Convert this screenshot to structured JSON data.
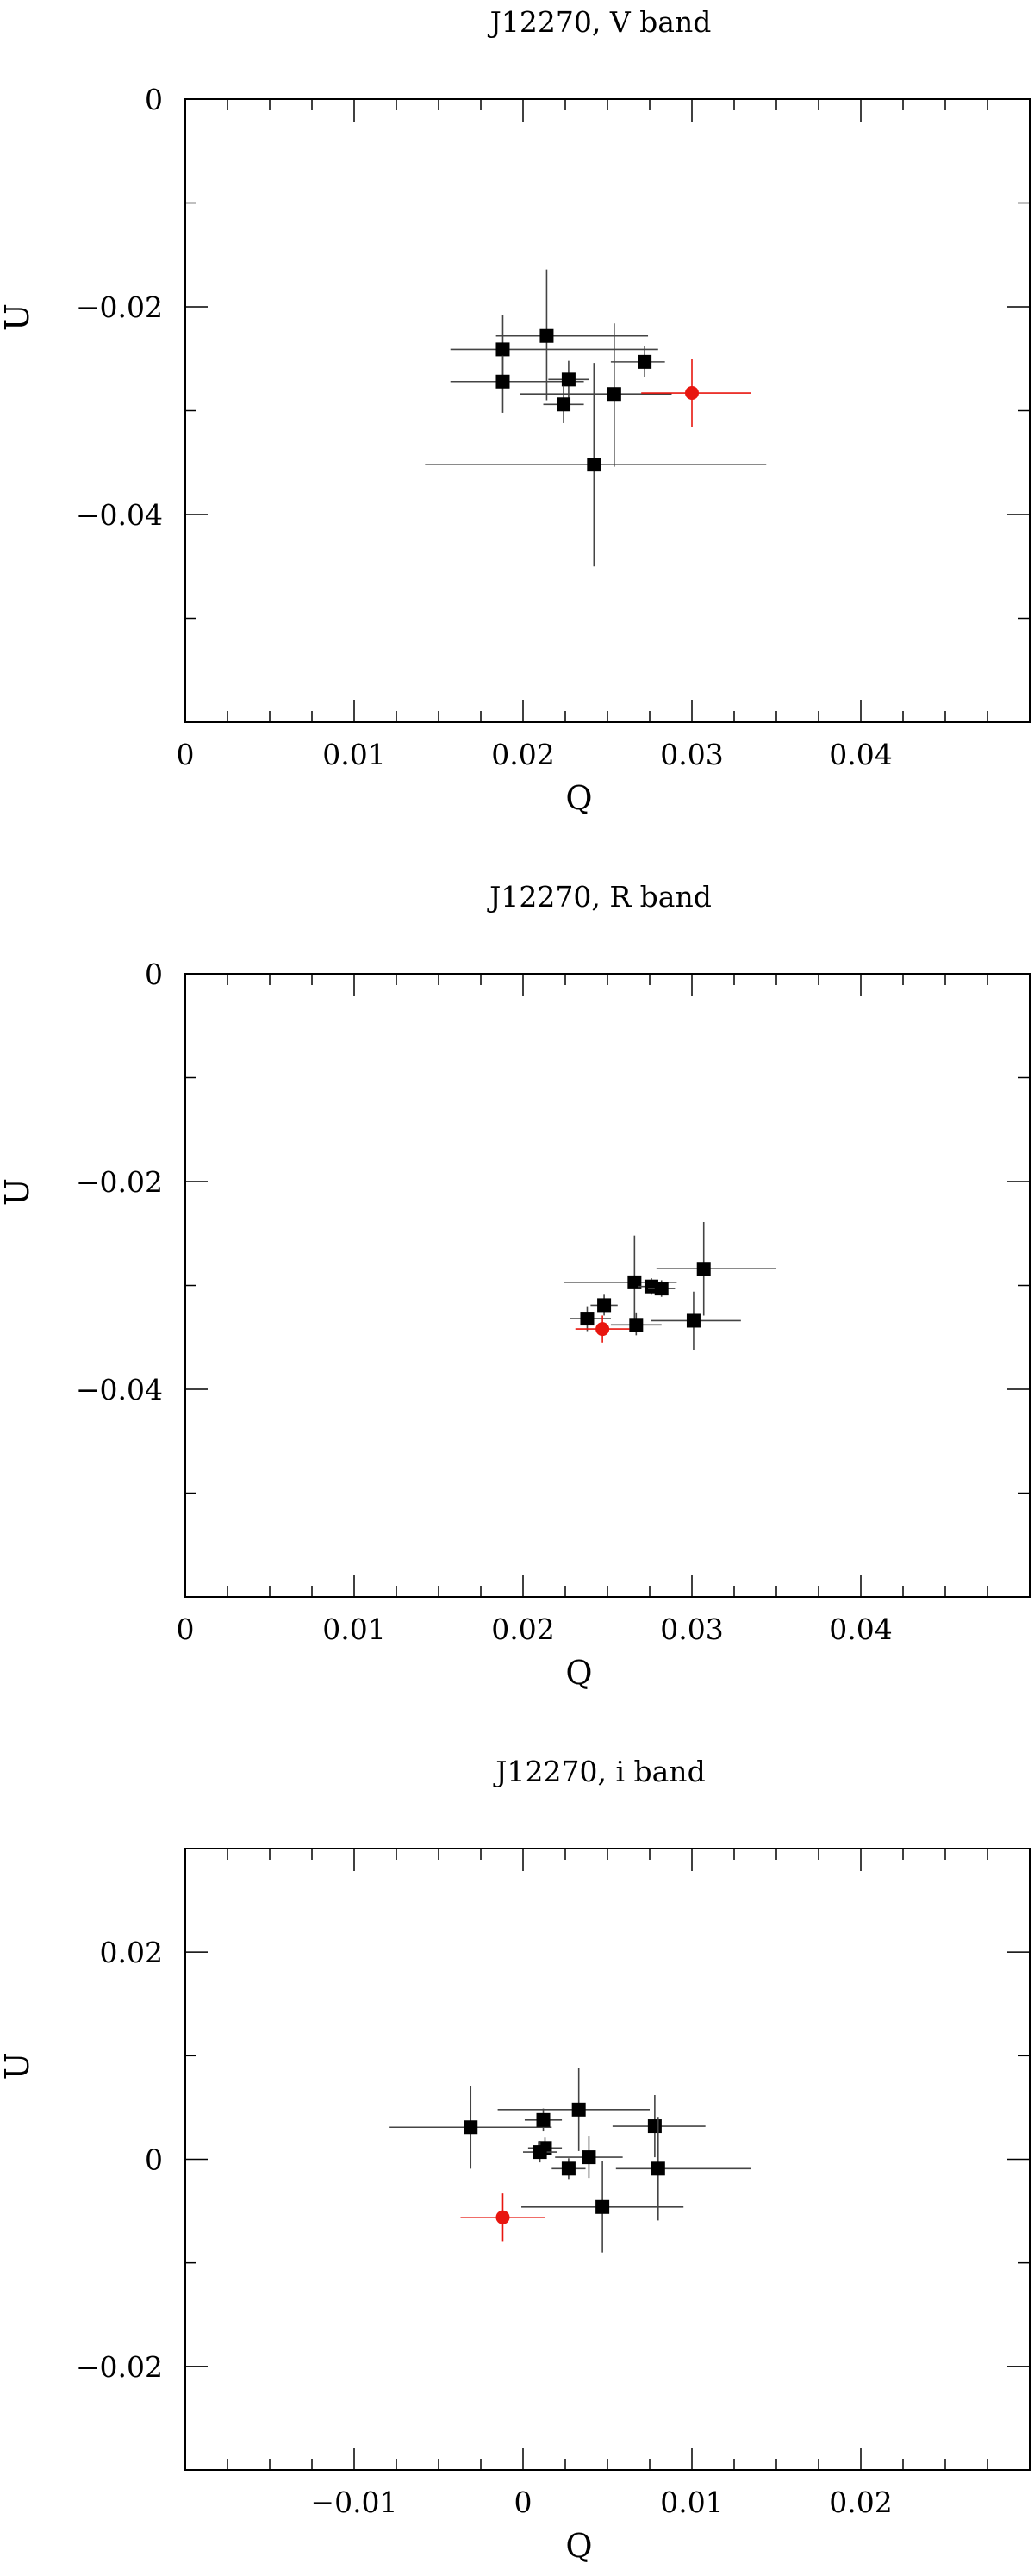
{
  "chart_data": [
    {
      "type": "scatter",
      "title": "J12270, V band",
      "xlabel": "Q",
      "ylabel": "U",
      "xlim": [
        0,
        0.05
      ],
      "ylim": [
        -0.06,
        0
      ],
      "xticks": [
        0,
        0.01,
        0.02,
        0.03,
        0.04
      ],
      "xtick_labels": [
        "0",
        "0.01",
        "0.02",
        "0.03",
        "0.04"
      ],
      "yticks": [
        0,
        -0.02,
        -0.04
      ],
      "ytick_labels": [
        "0",
        "−0.02",
        "−0.04"
      ],
      "grid": false,
      "series": [
        {
          "marker": "square",
          "color": "#000000",
          "errcolor": "#444444",
          "points": [
            {
              "x": 0.0188,
              "y": -0.0241,
              "xerr_lo": 0.0031,
              "xerr_hi": 0.0092,
              "yerr_lo": 0.0033,
              "yerr_hi": 0.0033
            },
            {
              "x": 0.0188,
              "y": -0.0272,
              "xerr_lo": 0.0031,
              "xerr_hi": 0.0048,
              "yerr_lo": 0.003,
              "yerr_hi": 0.0025
            },
            {
              "x": 0.0214,
              "y": -0.0228,
              "xerr_lo": 0.003,
              "xerr_hi": 0.006,
              "yerr_lo": 0.0062,
              "yerr_hi": 0.0064
            },
            {
              "x": 0.0227,
              "y": -0.027,
              "xerr_lo": 0.0012,
              "xerr_hi": 0.0012,
              "yerr_lo": 0.0018,
              "yerr_hi": 0.0018
            },
            {
              "x": 0.0224,
              "y": -0.0294,
              "xerr_lo": 0.0012,
              "xerr_hi": 0.0012,
              "yerr_lo": 0.0018,
              "yerr_hi": 0.0018
            },
            {
              "x": 0.0254,
              "y": -0.0284,
              "xerr_lo": 0.0056,
              "xerr_hi": 0.0034,
              "yerr_lo": 0.007,
              "yerr_hi": 0.0068
            },
            {
              "x": 0.0272,
              "y": -0.0253,
              "xerr_lo": 0.002,
              "xerr_hi": 0.0012,
              "yerr_lo": 0.0015,
              "yerr_hi": 0.0015
            },
            {
              "x": 0.0242,
              "y": -0.0352,
              "xerr_lo": 0.01,
              "xerr_hi": 0.0102,
              "yerr_lo": 0.0098,
              "yerr_hi": 0.0098
            }
          ]
        },
        {
          "marker": "circle",
          "color": "#e8160f",
          "errcolor": "#e8160f",
          "points": [
            {
              "x": 0.03,
              "y": -0.0283,
              "xerr_lo": 0.003,
              "xerr_hi": 0.0035,
              "yerr_lo": 0.0033,
              "yerr_hi": 0.0033
            }
          ]
        }
      ]
    },
    {
      "type": "scatter",
      "title": "J12270, R band",
      "xlabel": "Q",
      "ylabel": "U",
      "xlim": [
        0,
        0.05
      ],
      "ylim": [
        -0.06,
        0
      ],
      "xticks": [
        0,
        0.01,
        0.02,
        0.03,
        0.04
      ],
      "xtick_labels": [
        "0",
        "0.01",
        "0.02",
        "0.03",
        "0.04"
      ],
      "yticks": [
        0,
        -0.02,
        -0.04
      ],
      "ytick_labels": [
        "0",
        "−0.02",
        "−0.04"
      ],
      "grid": false,
      "series": [
        {
          "marker": "square",
          "color": "#000000",
          "errcolor": "#444444",
          "points": [
            {
              "x": 0.0266,
              "y": -0.0297,
              "xerr_lo": 0.0042,
              "xerr_hi": 0.0025,
              "yerr_lo": 0.0045,
              "yerr_hi": 0.0045
            },
            {
              "x": 0.0276,
              "y": -0.0301,
              "xerr_lo": 0.0008,
              "xerr_hi": 0.0008,
              "yerr_lo": 0.0008,
              "yerr_hi": 0.0008
            },
            {
              "x": 0.0282,
              "y": -0.0303,
              "xerr_lo": 0.0008,
              "xerr_hi": 0.0008,
              "yerr_lo": 0.0008,
              "yerr_hi": 0.0008
            },
            {
              "x": 0.0307,
              "y": -0.0284,
              "xerr_lo": 0.0028,
              "xerr_hi": 0.0043,
              "yerr_lo": 0.0045,
              "yerr_hi": 0.0045
            },
            {
              "x": 0.0248,
              "y": -0.0319,
              "xerr_lo": 0.0008,
              "xerr_hi": 0.0008,
              "yerr_lo": 0.001,
              "yerr_hi": 0.001
            },
            {
              "x": 0.0238,
              "y": -0.0332,
              "xerr_lo": 0.001,
              "xerr_hi": 0.0014,
              "yerr_lo": 0.0012,
              "yerr_hi": 0.0012
            },
            {
              "x": 0.0267,
              "y": -0.0338,
              "xerr_lo": 0.0015,
              "xerr_hi": 0.0015,
              "yerr_lo": 0.001,
              "yerr_hi": 0.0012
            },
            {
              "x": 0.0301,
              "y": -0.0334,
              "xerr_lo": 0.0025,
              "xerr_hi": 0.0028,
              "yerr_lo": 0.0028,
              "yerr_hi": 0.0028
            }
          ]
        },
        {
          "marker": "circle",
          "color": "#e8160f",
          "errcolor": "#e8160f",
          "points": [
            {
              "x": 0.0247,
              "y": -0.0342,
              "xerr_lo": 0.0016,
              "xerr_hi": 0.0016,
              "yerr_lo": 0.0013,
              "yerr_hi": 0.0013
            }
          ]
        }
      ]
    },
    {
      "type": "scatter",
      "title": "J12270, i band",
      "xlabel": "Q",
      "ylabel": "U",
      "xlim": [
        -0.02,
        0.03
      ],
      "ylim": [
        -0.03,
        0.03
      ],
      "xticks": [
        -0.01,
        0,
        0.01,
        0.02
      ],
      "xtick_labels": [
        "−0.01",
        "0",
        "0.01",
        "0.02"
      ],
      "yticks": [
        0.02,
        0,
        -0.02
      ],
      "ytick_labels": [
        "0.02",
        "0",
        "−0.02"
      ],
      "grid": false,
      "series": [
        {
          "marker": "square",
          "color": "#000000",
          "errcolor": "#444444",
          "points": [
            {
              "x": -0.0031,
              "y": 0.0031,
              "xerr_lo": 0.0048,
              "xerr_hi": 0.0048,
              "yerr_lo": 0.004,
              "yerr_hi": 0.004
            },
            {
              "x": 0.0033,
              "y": 0.0048,
              "xerr_lo": 0.0048,
              "xerr_hi": 0.0042,
              "yerr_lo": 0.004,
              "yerr_hi": 0.004
            },
            {
              "x": 0.0012,
              "y": 0.0038,
              "xerr_lo": 0.0011,
              "xerr_hi": 0.0011,
              "yerr_lo": 0.0011,
              "yerr_hi": 0.0011
            },
            {
              "x": 0.0078,
              "y": 0.0032,
              "xerr_lo": 0.0025,
              "xerr_hi": 0.003,
              "yerr_lo": 0.003,
              "yerr_hi": 0.003
            },
            {
              "x": 0.0013,
              "y": 0.0011,
              "xerr_lo": 0.001,
              "xerr_hi": 0.001,
              "yerr_lo": 0.001,
              "yerr_hi": 0.001
            },
            {
              "x": 0.001,
              "y": 0.0007,
              "xerr_lo": 0.001,
              "xerr_hi": 0.001,
              "yerr_lo": 0.001,
              "yerr_hi": 0.001
            },
            {
              "x": 0.0039,
              "y": 0.0002,
              "xerr_lo": 0.002,
              "xerr_hi": 0.002,
              "yerr_lo": 0.002,
              "yerr_hi": 0.002
            },
            {
              "x": 0.0027,
              "y": -0.0009,
              "xerr_lo": 0.001,
              "xerr_hi": 0.001,
              "yerr_lo": 0.001,
              "yerr_hi": 0.001
            },
            {
              "x": 0.008,
              "y": -0.0009,
              "xerr_lo": 0.0025,
              "xerr_hi": 0.0055,
              "yerr_lo": 0.005,
              "yerr_hi": 0.005
            },
            {
              "x": 0.0047,
              "y": -0.0046,
              "xerr_lo": 0.0048,
              "xerr_hi": 0.0048,
              "yerr_lo": 0.0044,
              "yerr_hi": 0.0044
            }
          ]
        },
        {
          "marker": "circle",
          "color": "#e8160f",
          "errcolor": "#e8160f",
          "points": [
            {
              "x": -0.0012,
              "y": -0.0056,
              "xerr_lo": 0.0025,
              "xerr_hi": 0.0025,
              "yerr_lo": 0.0023,
              "yerr_hi": 0.0023
            }
          ]
        }
      ]
    }
  ]
}
